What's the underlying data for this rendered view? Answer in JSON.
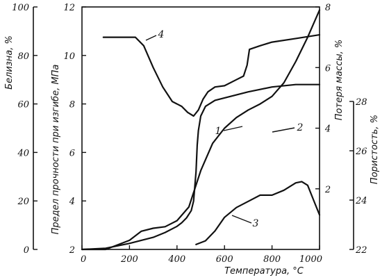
{
  "chart_data": {
    "type": "line",
    "xlabel": "Температура, °С",
    "xlim": [
      0,
      1000
    ],
    "x_ticks": [
      "0",
      "200",
      "400",
      "600",
      "800",
      "1000"
    ],
    "axes": {
      "whiteness": {
        "label": "Белизна, %",
        "lim": [
          0,
          100
        ],
        "ticks": [
          "0",
          "20",
          "40",
          "60",
          "80",
          "100"
        ]
      },
      "strength": {
        "label": "Предел прочности при изгибе, МПа",
        "lim": [
          2,
          12
        ],
        "ticks": [
          "2",
          "4",
          "6",
          "8",
          "10",
          "12"
        ]
      },
      "mass_loss": {
        "label": "Потеря массы, %",
        "lim": [
          0,
          8
        ],
        "ticks": [
          "2",
          "4",
          "6",
          "8"
        ]
      },
      "porosity": {
        "label": "Пористость, %",
        "lim": [
          22,
          28
        ],
        "ticks": [
          "22",
          "24",
          "26",
          "28"
        ]
      }
    },
    "series": [
      {
        "name": "1",
        "axis": "strength",
        "x": [
          0,
          100,
          200,
          300,
          350,
          400,
          420,
          440,
          460,
          470,
          480,
          485,
          490,
          495,
          500,
          520,
          560,
          600,
          700,
          800,
          900,
          1000
        ],
        "y": [
          2.0,
          2.05,
          2.25,
          2.5,
          2.7,
          2.95,
          3.1,
          3.3,
          3.6,
          4.0,
          5.2,
          6.3,
          6.9,
          7.2,
          7.5,
          7.9,
          8.15,
          8.25,
          8.5,
          8.7,
          8.8,
          8.8
        ]
      },
      {
        "name": "2",
        "axis": "mass_loss",
        "x": [
          0,
          100,
          200,
          250,
          300,
          350,
          400,
          450,
          500,
          550,
          600,
          650,
          700,
          750,
          800,
          850,
          900,
          950,
          1000
        ],
        "y": [
          0.0,
          0.0,
          0.3,
          0.6,
          0.7,
          0.75,
          0.95,
          1.4,
          2.6,
          3.5,
          4.0,
          4.35,
          4.6,
          4.8,
          5.05,
          5.5,
          6.2,
          7.0,
          7.9
        ]
      },
      {
        "name": "3",
        "axis": "porosity",
        "x": [
          480,
          520,
          560,
          600,
          650,
          700,
          750,
          800,
          850,
          900,
          925,
          950,
          975,
          1000
        ],
        "y": [
          22.2,
          22.35,
          22.75,
          23.3,
          23.7,
          23.95,
          24.2,
          24.2,
          24.4,
          24.7,
          24.75,
          24.6,
          24.0,
          23.4
        ]
      },
      {
        "name": "4",
        "axis": "whiteness",
        "x": [
          90,
          150,
          225,
          260,
          300,
          340,
          380,
          420,
          445,
          470,
          490,
          510,
          530,
          560,
          600,
          650,
          680,
          695,
          705,
          750,
          800,
          900,
          1000
        ],
        "y": [
          87.5,
          87.5,
          87.5,
          84,
          75,
          67,
          61,
          59,
          56.5,
          55,
          57.5,
          62,
          65,
          67,
          67.5,
          70,
          71.5,
          76,
          82.5,
          84,
          85.5,
          87,
          88.5
        ]
      }
    ],
    "curve_labels": [
      "1",
      "2",
      "3",
      "4"
    ]
  }
}
